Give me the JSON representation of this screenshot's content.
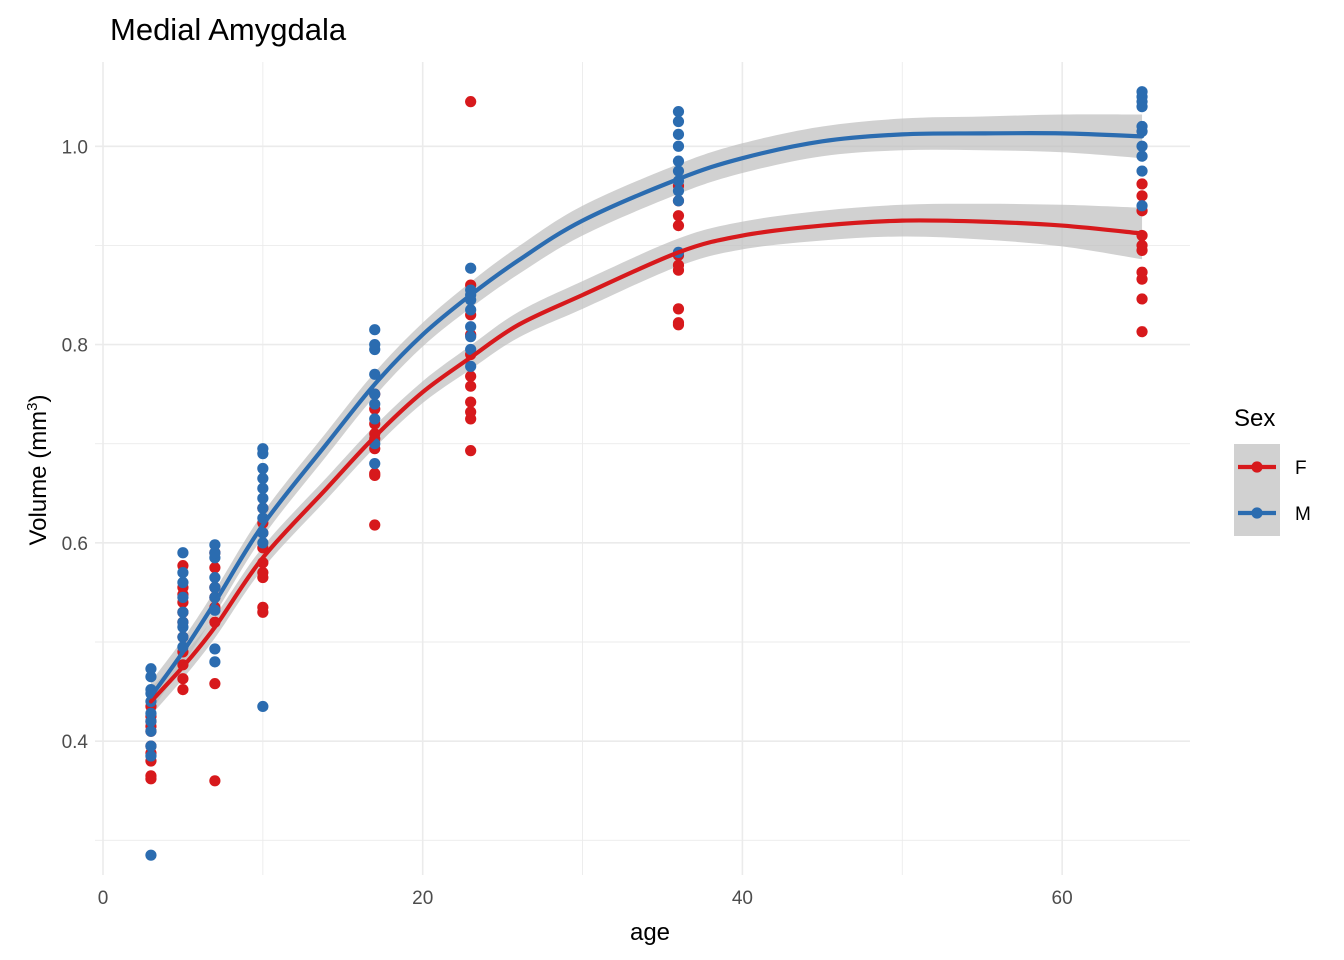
{
  "chart_data": {
    "type": "scatter",
    "title": "Medial Amygdala",
    "xlabel": "age",
    "ylabel": {
      "prefix": "Volume (mm",
      "superscript": "3",
      "suffix": ")"
    },
    "xlim": [
      -0.5,
      68
    ],
    "ylim": [
      0.265,
      1.085
    ],
    "x_ticks": [
      0,
      20,
      40,
      60
    ],
    "x_tick_labels": [
      "0",
      "20",
      "40",
      "60"
    ],
    "y_ticks": [
      0.4,
      0.6,
      0.8,
      1.0
    ],
    "y_tick_labels": [
      "0.4",
      "0.6",
      "0.8",
      "1.0"
    ],
    "grid": true,
    "legend": {
      "title": "Sex",
      "placement": "right"
    },
    "colors": {
      "F": "#d7191c",
      "M": "#2b6cb0",
      "ribbon": "#bdbdbd",
      "grid": "#ebebeb"
    },
    "series": [
      {
        "name": "F",
        "points": [
          [
            3,
            0.362
          ],
          [
            3,
            0.365
          ],
          [
            3,
            0.38
          ],
          [
            3,
            0.388
          ],
          [
            3,
            0.395
          ],
          [
            3,
            0.41
          ],
          [
            3,
            0.415
          ],
          [
            3,
            0.42
          ],
          [
            3,
            0.425
          ],
          [
            3,
            0.435
          ],
          [
            5,
            0.452
          ],
          [
            5,
            0.463
          ],
          [
            5,
            0.477
          ],
          [
            5,
            0.49
          ],
          [
            5,
            0.505
          ],
          [
            5,
            0.52
          ],
          [
            5,
            0.53
          ],
          [
            5,
            0.54
          ],
          [
            5,
            0.548
          ],
          [
            5,
            0.555
          ],
          [
            5,
            0.577
          ],
          [
            7,
            0.36
          ],
          [
            7,
            0.458
          ],
          [
            7,
            0.52
          ],
          [
            7,
            0.535
          ],
          [
            7,
            0.545
          ],
          [
            7,
            0.555
          ],
          [
            7,
            0.575
          ],
          [
            7,
            0.59
          ],
          [
            10,
            0.53
          ],
          [
            10,
            0.535
          ],
          [
            10,
            0.565
          ],
          [
            10,
            0.57
          ],
          [
            10,
            0.58
          ],
          [
            10,
            0.595
          ],
          [
            10,
            0.61
          ],
          [
            10,
            0.62
          ],
          [
            10,
            0.635
          ],
          [
            17,
            0.618
          ],
          [
            17,
            0.668
          ],
          [
            17,
            0.67
          ],
          [
            17,
            0.695
          ],
          [
            17,
            0.705
          ],
          [
            17,
            0.71
          ],
          [
            17,
            0.72
          ],
          [
            17,
            0.735
          ],
          [
            17,
            0.75
          ],
          [
            23,
            0.693
          ],
          [
            23,
            0.725
          ],
          [
            23,
            0.732
          ],
          [
            23,
            0.742
          ],
          [
            23,
            0.758
          ],
          [
            23,
            0.768
          ],
          [
            23,
            0.79
          ],
          [
            23,
            0.81
          ],
          [
            23,
            0.83
          ],
          [
            23,
            0.86
          ],
          [
            23,
            1.045
          ],
          [
            36,
            0.82
          ],
          [
            36,
            0.822
          ],
          [
            36,
            0.836
          ],
          [
            36,
            0.875
          ],
          [
            36,
            0.88
          ],
          [
            36,
            0.89
          ],
          [
            36,
            0.92
          ],
          [
            36,
            0.93
          ],
          [
            36,
            0.945
          ],
          [
            36,
            0.96
          ],
          [
            65,
            0.813
          ],
          [
            65,
            0.846
          ],
          [
            65,
            0.866
          ],
          [
            65,
            0.873
          ],
          [
            65,
            0.895
          ],
          [
            65,
            0.9
          ],
          [
            65,
            0.91
          ],
          [
            65,
            0.935
          ],
          [
            65,
            0.95
          ],
          [
            65,
            0.962
          ]
        ],
        "fit": [
          [
            3,
            0.44
          ],
          [
            5,
            0.475
          ],
          [
            7,
            0.515
          ],
          [
            10,
            0.585
          ],
          [
            14,
            0.655
          ],
          [
            17,
            0.707
          ],
          [
            20,
            0.752
          ],
          [
            23,
            0.787
          ],
          [
            26,
            0.82
          ],
          [
            30,
            0.85
          ],
          [
            36,
            0.893
          ],
          [
            40,
            0.91
          ],
          [
            45,
            0.92
          ],
          [
            50,
            0.925
          ],
          [
            55,
            0.924
          ],
          [
            60,
            0.92
          ],
          [
            65,
            0.912
          ]
        ],
        "ribbon_halfwidth": [
          0.014,
          0.012,
          0.011,
          0.011,
          0.011,
          0.011,
          0.011,
          0.012,
          0.013,
          0.014,
          0.014,
          0.014,
          0.015,
          0.016,
          0.018,
          0.021,
          0.026
        ]
      },
      {
        "name": "M",
        "points": [
          [
            3,
            0.285
          ],
          [
            3,
            0.385
          ],
          [
            3,
            0.395
          ],
          [
            3,
            0.41
          ],
          [
            3,
            0.42
          ],
          [
            3,
            0.428
          ],
          [
            3,
            0.44
          ],
          [
            3,
            0.448
          ],
          [
            3,
            0.452
          ],
          [
            3,
            0.465
          ],
          [
            3,
            0.473
          ],
          [
            5,
            0.495
          ],
          [
            5,
            0.505
          ],
          [
            5,
            0.515
          ],
          [
            5,
            0.52
          ],
          [
            5,
            0.53
          ],
          [
            5,
            0.545
          ],
          [
            5,
            0.56
          ],
          [
            5,
            0.57
          ],
          [
            5,
            0.59
          ],
          [
            7,
            0.48
          ],
          [
            7,
            0.493
          ],
          [
            7,
            0.532
          ],
          [
            7,
            0.545
          ],
          [
            7,
            0.555
          ],
          [
            7,
            0.565
          ],
          [
            7,
            0.585
          ],
          [
            7,
            0.59
          ],
          [
            7,
            0.598
          ],
          [
            10,
            0.435
          ],
          [
            10,
            0.6
          ],
          [
            10,
            0.61
          ],
          [
            10,
            0.625
          ],
          [
            10,
            0.635
          ],
          [
            10,
            0.645
          ],
          [
            10,
            0.655
          ],
          [
            10,
            0.665
          ],
          [
            10,
            0.675
          ],
          [
            10,
            0.69
          ],
          [
            10,
            0.695
          ],
          [
            17,
            0.68
          ],
          [
            17,
            0.7
          ],
          [
            17,
            0.725
          ],
          [
            17,
            0.74
          ],
          [
            17,
            0.75
          ],
          [
            17,
            0.77
          ],
          [
            17,
            0.795
          ],
          [
            17,
            0.8
          ],
          [
            17,
            0.815
          ],
          [
            23,
            0.778
          ],
          [
            23,
            0.795
          ],
          [
            23,
            0.808
          ],
          [
            23,
            0.818
          ],
          [
            23,
            0.835
          ],
          [
            23,
            0.845
          ],
          [
            23,
            0.85
          ],
          [
            23,
            0.855
          ],
          [
            23,
            0.877
          ],
          [
            36,
            0.893
          ],
          [
            36,
            0.945
          ],
          [
            36,
            0.955
          ],
          [
            36,
            0.965
          ],
          [
            36,
            0.975
          ],
          [
            36,
            0.985
          ],
          [
            36,
            1.0
          ],
          [
            36,
            1.012
          ],
          [
            36,
            1.025
          ],
          [
            36,
            1.035
          ],
          [
            65,
            0.94
          ],
          [
            65,
            0.975
          ],
          [
            65,
            0.99
          ],
          [
            65,
            1.0
          ],
          [
            65,
            1.015
          ],
          [
            65,
            1.02
          ],
          [
            65,
            1.04
          ],
          [
            65,
            1.045
          ],
          [
            65,
            1.05
          ],
          [
            65,
            1.055
          ]
        ],
        "fit": [
          [
            3,
            0.445
          ],
          [
            5,
            0.49
          ],
          [
            7,
            0.54
          ],
          [
            10,
            0.618
          ],
          [
            14,
            0.7
          ],
          [
            17,
            0.76
          ],
          [
            20,
            0.81
          ],
          [
            23,
            0.85
          ],
          [
            26,
            0.885
          ],
          [
            30,
            0.925
          ],
          [
            36,
            0.967
          ],
          [
            40,
            0.988
          ],
          [
            45,
            1.005
          ],
          [
            50,
            1.012
          ],
          [
            55,
            1.013
          ],
          [
            60,
            1.013
          ],
          [
            65,
            1.01
          ]
        ],
        "ribbon_halfwidth": [
          0.015,
          0.013,
          0.012,
          0.012,
          0.012,
          0.012,
          0.012,
          0.013,
          0.014,
          0.015,
          0.015,
          0.015,
          0.015,
          0.016,
          0.017,
          0.019,
          0.022
        ]
      }
    ]
  }
}
